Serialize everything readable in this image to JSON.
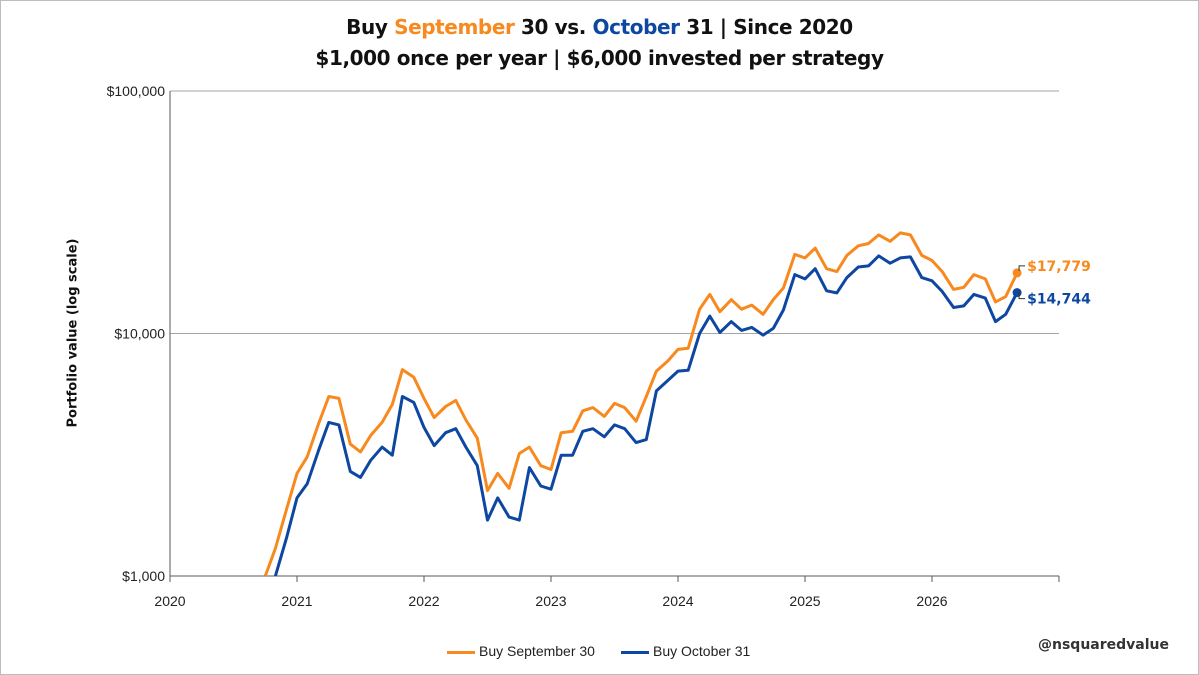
{
  "title": {
    "line1_pre": "Buy ",
    "line1_series1": "September",
    "line1_mid": " 30 vs. ",
    "line1_series2": "October",
    "line1_post": " 31 | Since 2020",
    "line2": "$1,000 once per year | $6,000 invested per strategy"
  },
  "watermark": "@nsquaredvalue",
  "colors": {
    "series1": "#f7891e",
    "series2": "#0d47a1",
    "grid": "#a6a6a6",
    "axis": "#595959"
  },
  "chart_data": {
    "type": "line",
    "title": "Buy September 30 vs. October 31 | Since 2020",
    "subtitle": "$1,000 once per year | $6,000 invested per strategy",
    "xlabel": "",
    "ylabel": "Portfolio value (log scale)",
    "yscale": "log",
    "ylim": [
      1000,
      100000
    ],
    "xlim": [
      2020,
      2027
    ],
    "yticks": [
      1000,
      10000,
      100000
    ],
    "ytick_labels": [
      "$1,000",
      "$10,000",
      "$100,000"
    ],
    "xticks": [
      2020,
      2021,
      2022,
      2023,
      2024,
      2025,
      2026
    ],
    "xtick_labels": [
      "2020",
      "2021",
      "2022",
      "2023",
      "2024",
      "2025",
      "2026"
    ],
    "grid": "horizontal",
    "legend_position": "bottom",
    "series": [
      {
        "name": "Buy September 30",
        "color": "#f7891e",
        "end_label": "$17,779",
        "x": [
          2020.75,
          2020.83,
          2020.92,
          2021.0,
          2021.08,
          2021.17,
          2021.25,
          2021.33,
          2021.42,
          2021.5,
          2021.58,
          2021.67,
          2021.75,
          2021.83,
          2021.92,
          2022.0,
          2022.08,
          2022.17,
          2022.25,
          2022.33,
          2022.42,
          2022.5,
          2022.58,
          2022.67,
          2022.75,
          2022.83,
          2022.92,
          2023.0,
          2023.08,
          2023.17,
          2023.25,
          2023.33,
          2023.42,
          2023.5,
          2023.58,
          2023.67,
          2023.75,
          2023.83,
          2023.92,
          2024.0,
          2024.08,
          2024.17,
          2024.25,
          2024.33,
          2024.42,
          2024.5,
          2024.58,
          2024.67,
          2024.75,
          2024.83,
          2024.92,
          2025.0,
          2025.08,
          2025.17,
          2025.25,
          2025.33,
          2025.42,
          2025.5,
          2025.58,
          2025.67,
          2025.75,
          2025.83,
          2025.92,
          2026.0,
          2026.08,
          2026.17,
          2026.25,
          2026.33,
          2026.42,
          2026.5,
          2026.58,
          2026.67
        ],
        "y": [
          1000,
          1300,
          1900,
          2650,
          3100,
          4250,
          5500,
          5400,
          3500,
          3250,
          3800,
          4300,
          5100,
          7100,
          6600,
          5400,
          4500,
          5000,
          5300,
          4400,
          3700,
          2250,
          2650,
          2300,
          3200,
          3400,
          2850,
          2750,
          3900,
          3950,
          4800,
          4950,
          4550,
          5150,
          4950,
          4350,
          5500,
          7000,
          7700,
          8600,
          8700,
          12600,
          14500,
          12300,
          13800,
          12600,
          13100,
          12000,
          13800,
          15400,
          21200,
          20500,
          22500,
          18500,
          18000,
          21000,
          23000,
          23500,
          25500,
          24000,
          26000,
          25500,
          21000,
          20000,
          18000,
          15200,
          15500,
          17500,
          16800,
          13500,
          14200,
          17779
        ]
      },
      {
        "name": "Buy October 31",
        "color": "#0d47a1",
        "end_label": "$14,744",
        "x": [
          2020.83,
          2020.92,
          2021.0,
          2021.08,
          2021.17,
          2021.25,
          2021.33,
          2021.42,
          2021.5,
          2021.58,
          2021.67,
          2021.75,
          2021.83,
          2021.92,
          2022.0,
          2022.08,
          2022.17,
          2022.25,
          2022.33,
          2022.42,
          2022.5,
          2022.58,
          2022.67,
          2022.75,
          2022.83,
          2022.92,
          2023.0,
          2023.08,
          2023.17,
          2023.25,
          2023.33,
          2023.42,
          2023.5,
          2023.58,
          2023.67,
          2023.75,
          2023.83,
          2023.92,
          2024.0,
          2024.08,
          2024.17,
          2024.25,
          2024.33,
          2024.42,
          2024.5,
          2024.58,
          2024.67,
          2024.75,
          2024.83,
          2024.92,
          2025.0,
          2025.08,
          2025.17,
          2025.25,
          2025.33,
          2025.42,
          2025.5,
          2025.58,
          2025.67,
          2025.75,
          2025.83,
          2025.92,
          2026.0,
          2026.08,
          2026.17,
          2026.25,
          2026.33,
          2026.42,
          2026.5,
          2026.58,
          2026.67
        ],
        "y": [
          1000,
          1450,
          2100,
          2400,
          3300,
          4300,
          4200,
          2700,
          2550,
          3000,
          3400,
          3150,
          5500,
          5200,
          4100,
          3450,
          3900,
          4050,
          3400,
          2850,
          1700,
          2100,
          1750,
          1700,
          2800,
          2350,
          2280,
          3150,
          3150,
          3950,
          4050,
          3750,
          4200,
          4050,
          3550,
          3650,
          5800,
          6400,
          7000,
          7050,
          10000,
          11800,
          10100,
          11200,
          10300,
          10600,
          9850,
          10500,
          12500,
          17500,
          16800,
          18500,
          15000,
          14700,
          17000,
          18800,
          19000,
          20900,
          19500,
          20500,
          20700,
          17000,
          16500,
          14900,
          12800,
          13000,
          14500,
          14000,
          11200,
          12000,
          14744
        ]
      }
    ]
  }
}
